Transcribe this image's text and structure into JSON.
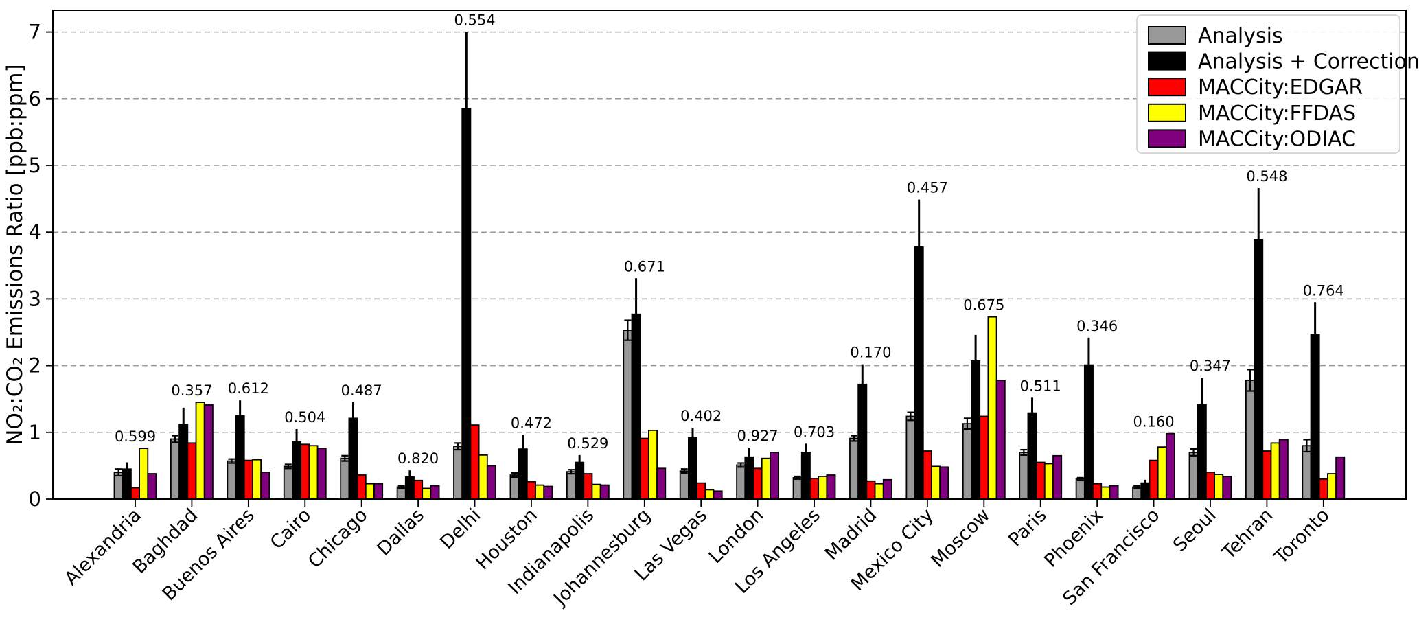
{
  "figure": {
    "ylabel": "NO₂:CO₂ Emissions Ratio [ppb:ppm]",
    "yticks": [
      "0",
      "1",
      "2",
      "3",
      "4",
      "5",
      "6",
      "7"
    ]
  },
  "legend": {
    "position": "upper right",
    "entries": [
      {
        "label": "Analysis",
        "color": "#999999"
      },
      {
        "label": "Analysis + Correction",
        "color": "#000000"
      },
      {
        "label": "MACCity:EDGAR",
        "color": "#ff0000"
      },
      {
        "label": "MACCity:FFDAS",
        "color": "#ffff00"
      },
      {
        "label": "MACCity:ODIAC",
        "color": "#800080"
      }
    ]
  },
  "chart_data": {
    "type": "bar",
    "title": "",
    "xlabel": "",
    "ylabel": "NO₂:CO₂ Emissions Ratio [ppb:ppm]",
    "ylim": [
      0,
      7.33
    ],
    "yticks": [
      0,
      1,
      2,
      3,
      4,
      5,
      6,
      7
    ],
    "grid": "horizontal dashed gray lines at integers 1-7",
    "legend_position": "upper right",
    "categories": [
      "Alexandria",
      "Baghdad",
      "Buenos Aires",
      "Cairo",
      "Chicago",
      "Dallas",
      "Delhi",
      "Houston",
      "Indianapolis",
      "Johannesburg",
      "Las Vegas",
      "London",
      "Los Angeles",
      "Madrid",
      "Mexico City",
      "Moscow",
      "Paris",
      "Phoenix",
      "San Francisco",
      "Seoul",
      "Tehran",
      "Toronto"
    ],
    "series": [
      {
        "name": "Analysis",
        "color": "#999999",
        "values": [
          0.4,
          0.9,
          0.57,
          0.49,
          0.61,
          0.18,
          0.79,
          0.36,
          0.41,
          2.53,
          0.42,
          0.51,
          0.32,
          0.91,
          1.24,
          1.13,
          0.7,
          0.3,
          0.18,
          0.7,
          1.78,
          0.8
        ],
        "errors": [
          0.05,
          0.05,
          0.03,
          0.03,
          0.04,
          0.02,
          0.05,
          0.03,
          0.03,
          0.15,
          0.03,
          0.03,
          0.02,
          0.04,
          0.06,
          0.08,
          0.04,
          0.02,
          0.02,
          0.05,
          0.16,
          0.09
        ]
      },
      {
        "name": "Analysis + Correction",
        "color": "#000000",
        "values": [
          0.45,
          1.12,
          1.25,
          0.86,
          1.21,
          0.33,
          5.85,
          0.75,
          0.55,
          2.77,
          0.92,
          0.63,
          0.7,
          1.72,
          3.78,
          2.07,
          1.29,
          2.01,
          0.24,
          1.42,
          3.89,
          2.47
        ],
        "errors_upper": [
          0.1,
          0.25,
          0.23,
          0.19,
          0.24,
          0.1,
          1.15,
          0.21,
          0.11,
          0.54,
          0.15,
          0.14,
          0.13,
          0.3,
          0.71,
          0.39,
          0.23,
          0.41,
          0.05,
          0.4,
          0.77,
          0.48
        ]
      },
      {
        "name": "MACCity:EDGAR",
        "color": "#ff0000",
        "values": [
          0.17,
          0.84,
          0.58,
          0.82,
          0.36,
          0.28,
          1.11,
          0.26,
          0.38,
          0.91,
          0.24,
          0.46,
          0.31,
          0.27,
          0.72,
          1.24,
          0.55,
          0.23,
          0.58,
          0.4,
          0.72,
          0.3
        ]
      },
      {
        "name": "MACCity:FFDAS",
        "color": "#ffff00",
        "values": [
          0.76,
          1.45,
          0.59,
          0.8,
          0.23,
          0.16,
          0.66,
          0.21,
          0.22,
          1.03,
          0.14,
          0.61,
          0.34,
          0.23,
          0.49,
          2.73,
          0.53,
          0.18,
          0.78,
          0.37,
          0.84,
          0.38
        ]
      },
      {
        "name": "MACCity:ODIAC",
        "color": "#800080",
        "values": [
          0.38,
          1.41,
          0.4,
          0.76,
          0.23,
          0.2,
          0.5,
          0.19,
          0.21,
          0.46,
          0.12,
          0.7,
          0.36,
          0.29,
          0.48,
          1.78,
          0.65,
          0.2,
          0.98,
          0.34,
          0.89,
          0.63
        ]
      }
    ],
    "annotations": [
      "0.599",
      "0.357",
      "0.612",
      "0.504",
      "0.487",
      "0.820",
      "0.554",
      "0.472",
      "0.529",
      "0.671",
      "0.402",
      "0.927",
      "0.703",
      "0.170",
      "0.457",
      "0.675",
      "0.511",
      "0.346",
      "0.160",
      "0.347",
      "0.548",
      "0.764"
    ]
  }
}
